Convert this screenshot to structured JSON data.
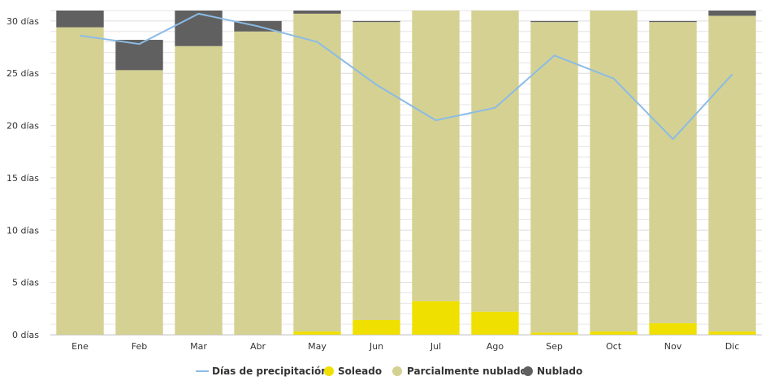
{
  "colors": {
    "sunny": "#f0e000",
    "partly": "#d4d192",
    "cloudy": "#606060",
    "precip": "#8cbbe6",
    "grid": "#e6e6e6",
    "axis": "#cccccc"
  },
  "legend": {
    "precip_label": "Días de precipitación",
    "sunny_label": "Soleado",
    "partly_label": "Parcialmente nublado",
    "cloudy_label": "Nublado"
  },
  "chart_data": {
    "type": "bar",
    "stacked": true,
    "categories": [
      "Ene",
      "Feb",
      "Mar",
      "Abr",
      "May",
      "Jun",
      "Jul",
      "Ago",
      "Sep",
      "Oct",
      "Nov",
      "Dic"
    ],
    "series": [
      {
        "name": "Soleado",
        "values": [
          0,
          0,
          0,
          0,
          0.3,
          1.4,
          3.2,
          2.2,
          0.2,
          0.3,
          1.1,
          0.3
        ]
      },
      {
        "name": "Parcialmente nublado",
        "values": [
          29.4,
          25.3,
          27.6,
          29.0,
          30.4,
          28.5,
          27.8,
          28.8,
          29.7,
          30.7,
          28.8,
          30.2
        ]
      },
      {
        "name": "Nublado",
        "values": [
          1.6,
          2.9,
          3.4,
          1.0,
          0.3,
          0.1,
          0,
          0,
          0.1,
          0,
          0.1,
          0.5
        ]
      }
    ],
    "line_series": {
      "name": "Días de precipitación",
      "values": [
        28.6,
        27.8,
        30.7,
        29.5,
        28.0,
        23.9,
        20.5,
        21.7,
        26.7,
        24.5,
        18.7,
        24.9
      ]
    },
    "ylim": [
      0,
      31
    ],
    "yticks": [
      0,
      5,
      10,
      15,
      20,
      25,
      30
    ],
    "ytick_labels": [
      "0 días",
      "5 días",
      "10 días",
      "15 días",
      "20 días",
      "25 días",
      "30 días"
    ],
    "title": "",
    "xlabel": "",
    "ylabel": "",
    "legend_position": "bottom-center"
  }
}
